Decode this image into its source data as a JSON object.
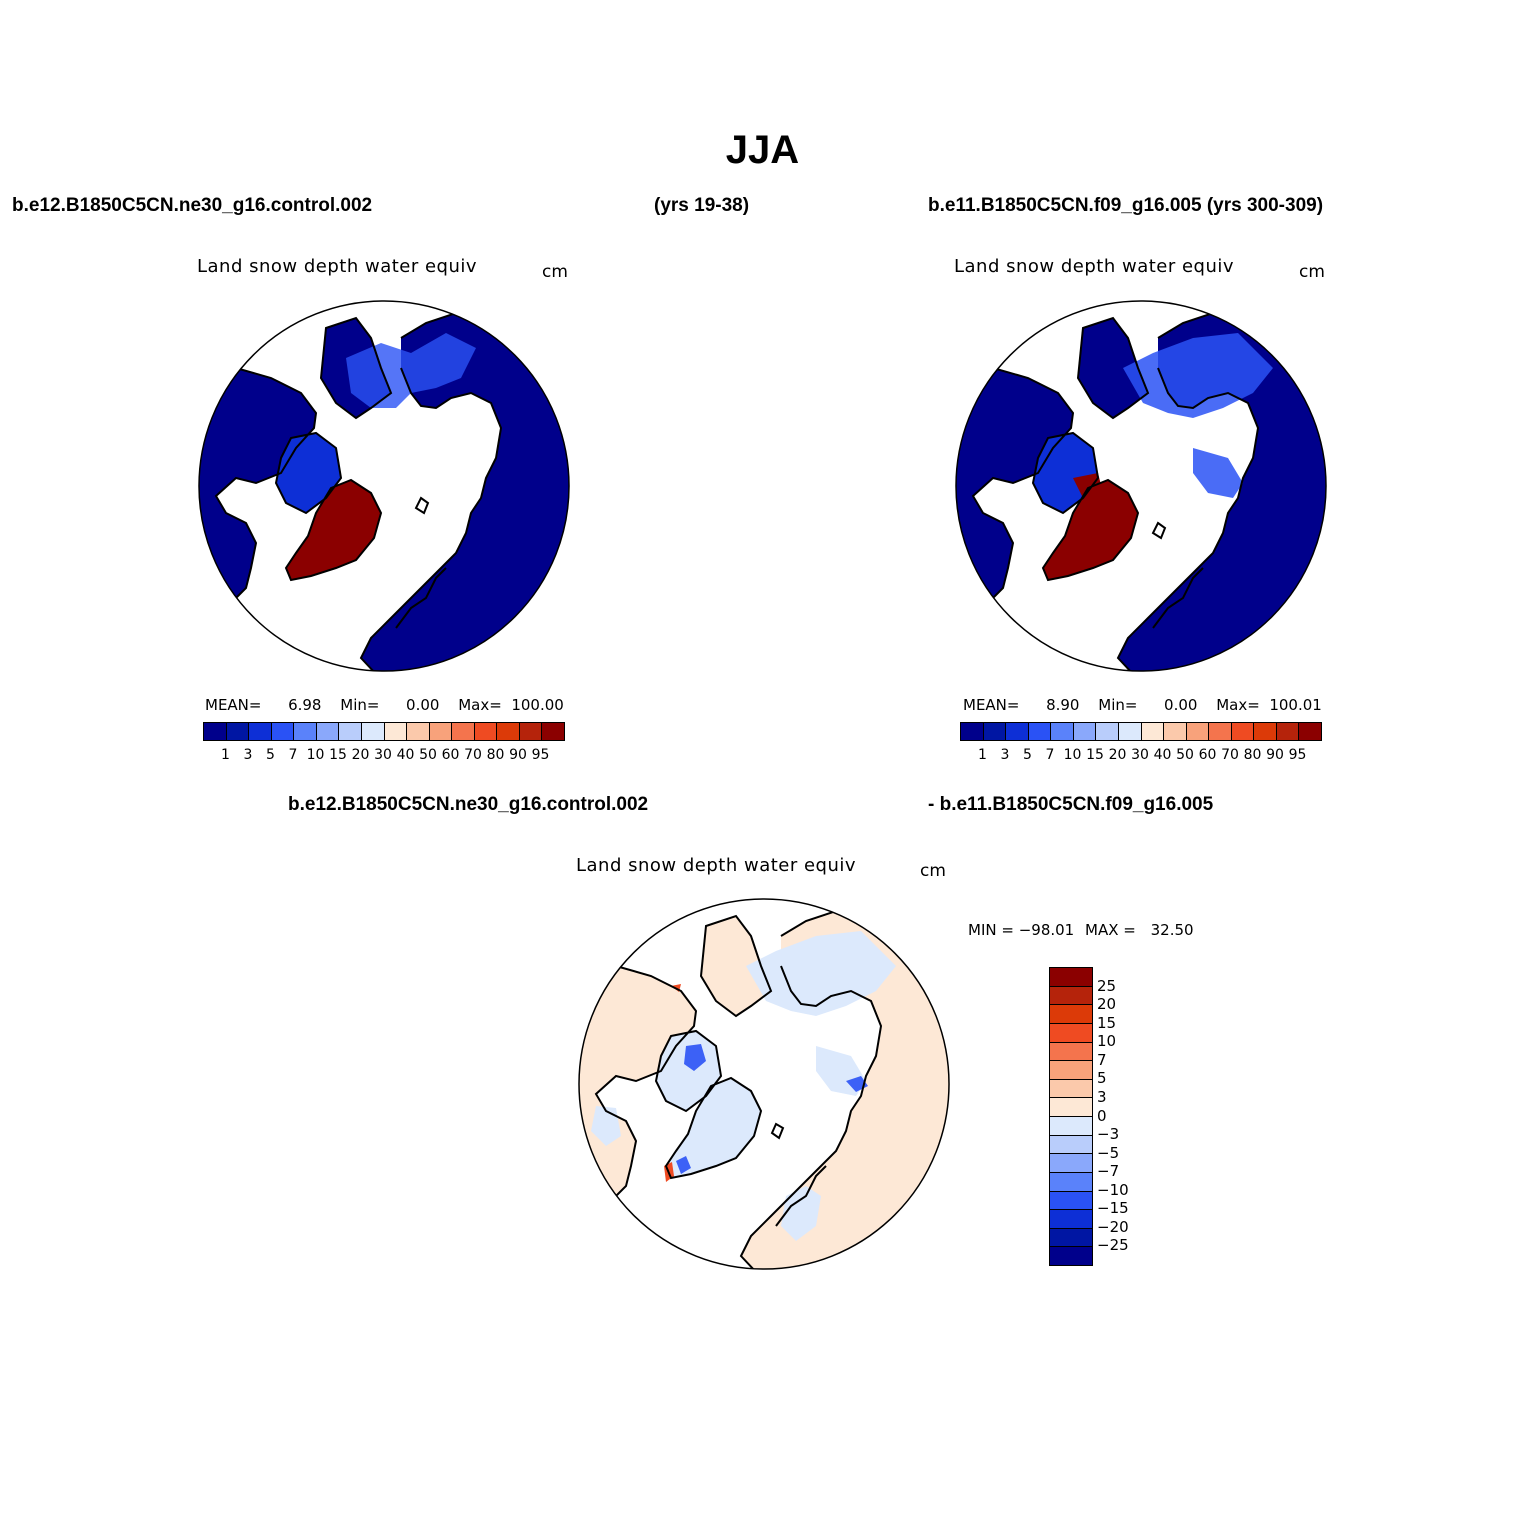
{
  "figure": {
    "title": "JJA"
  },
  "header": {
    "case1": "b.e12.B1850C5CN.ne30_g16.control.002",
    "case1_years": "(yrs 19-38)",
    "case2": "b.e11.B1850C5CN.f09_g16.005 (yrs 300-309)"
  },
  "panels": [
    {
      "title": "Land snow depth water equiv",
      "units": "cm",
      "stats": {
        "mean_label": "MEAN=",
        "mean": "6.98",
        "min_label": "Min=",
        "min": "0.00",
        "max_label": "Max=",
        "max": "100.00"
      }
    },
    {
      "title": "Land snow depth water equiv",
      "units": "cm",
      "stats": {
        "mean_label": "MEAN=",
        "mean": "8.90",
        "min_label": "Min=",
        "min": "0.00",
        "max_label": "Max=",
        "max": "100.01"
      }
    }
  ],
  "diff": {
    "case_left": "b.e12.B1850C5CN.ne30_g16.control.002",
    "case_right": "- b.e11.B1850C5CN.f09_g16.005",
    "title": "Land snow depth water equiv",
    "units": "cm",
    "min_label": "MIN =",
    "min": "−98.01",
    "max_label": "MAX =",
    "max": "32.50"
  },
  "colorbars": {
    "abs": {
      "colors": [
        "#00008b",
        "#0016a3",
        "#0d2fd6",
        "#2a52f5",
        "#5a82fa",
        "#8aa8fb",
        "#b9cdfb",
        "#dce9fc",
        "#fde8d6",
        "#fbc9ab",
        "#f8a27b",
        "#f4744d",
        "#ef4b22",
        "#dc3a08",
        "#b5230b",
        "#8b0000"
      ],
      "labels": [
        "1",
        "3",
        "5",
        "7",
        "10",
        "15",
        "20",
        "30",
        "40",
        "50",
        "60",
        "70",
        "80",
        "90",
        "95"
      ]
    },
    "diff": {
      "colors_top_to_bottom": [
        "#8b0000",
        "#b5230b",
        "#dc3a08",
        "#ef4b22",
        "#f4744d",
        "#f8a27b",
        "#fbc9ab",
        "#fde8d6",
        "#dce9fc",
        "#b9cdfb",
        "#8aa8fb",
        "#5a82fa",
        "#2a52f5",
        "#0d2fd6",
        "#0016a3",
        "#00008b"
      ],
      "labels_top_to_bottom": [
        "25",
        "20",
        "15",
        "10",
        "7",
        "5",
        "3",
        "0",
        "−3",
        "−5",
        "−7",
        "−10",
        "−15",
        "−20",
        "−25"
      ]
    }
  },
  "map_fields": {
    "ocean": "#ffffff",
    "greenland": "#8b0000",
    "land_snow_abs": "#00008b",
    "land_diff_positive": "#fde8d6",
    "land_diff_negative": "#dce9fc"
  }
}
